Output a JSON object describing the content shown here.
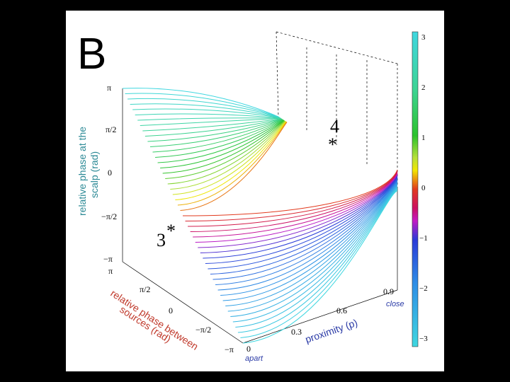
{
  "panel_label": "B",
  "annotations": {
    "marker_3_num": "3",
    "marker_3_star": "*",
    "marker_4_num": "4",
    "marker_4_star": "*"
  },
  "colors": {
    "axis_title_z": "#2d8a96",
    "axis_title_y": "#c0392b",
    "axis_title_x": "#2a3aa6"
  },
  "chart_data": {
    "type": "surface3d",
    "title": "",
    "zlabel_line1": "relative phase at the",
    "zlabel_line2": "scalp (rad)",
    "ylabel_line1": "relative phase between",
    "ylabel_line2": "sources (rad)",
    "xlabel": "proximity (p)",
    "x_range": [
      0,
      1
    ],
    "y_range": [
      -3.1416,
      3.1416
    ],
    "z_range": [
      -3.1416,
      3.1416
    ],
    "x_ticks": [
      "0",
      "0.3",
      "0.6",
      "0.9"
    ],
    "x_tick_values": [
      0,
      0.3,
      0.6,
      0.9
    ],
    "x_end_labels": {
      "apart": "apart",
      "close": "close"
    },
    "y_ticks": [
      "π",
      "π/2",
      "0",
      "−π/2",
      "−π"
    ],
    "z_ticks": [
      "π",
      "π/2",
      "0",
      "−π/2",
      "−π"
    ],
    "colorbar": {
      "ticks": [
        "3",
        "2",
        "1",
        "0",
        "−1",
        "−2",
        "−3"
      ],
      "range": [
        -3.1416,
        3.1416
      ],
      "colormap": "cyan → green → yellow → red → magenta → blue → cyan"
    },
    "surface": {
      "description": "relative scalp phase as a function of source proximity and relative source phase",
      "n_curves": 48
    }
  }
}
